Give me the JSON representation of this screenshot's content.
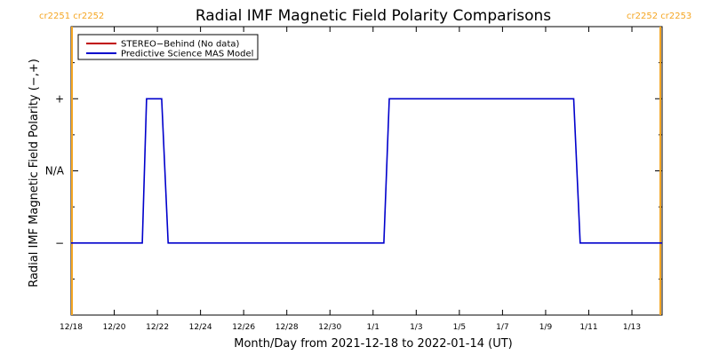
{
  "chart_data": {
    "type": "line",
    "title": "Radial IMF Magnetic Field Polarity Comparisons",
    "xlabel": "Month/Day from 2021-12-18 to 2022-01-14 (UT)",
    "ylabel": "Radial IMF Magnetic Field Polarity (−,+)",
    "x_tick_labels": [
      "12/18",
      "12/20",
      "12/22",
      "12/24",
      "12/26",
      "12/28",
      "12/30",
      "1/1",
      "1/3",
      "1/5",
      "1/7",
      "1/9",
      "1/11",
      "1/13"
    ],
    "y_tick_labels": [
      "+",
      "N/A",
      "−"
    ],
    "carrington_labels": {
      "left": [
        "cr2251",
        "cr2252"
      ],
      "right": [
        "cr2252",
        "cr2253"
      ]
    },
    "cr_color": "#f5a623",
    "legend": {
      "position": "top-left",
      "entries": [
        {
          "label": "STEREO−Behind (No data)",
          "color": "#c00000"
        },
        {
          "label": "Predictive Science MAS Model",
          "color": "#0000cc"
        }
      ]
    },
    "series": [
      {
        "name": "Predictive Science MAS Model",
        "color": "#0000cc",
        "x": [
          0,
          3.3,
          3.5,
          4.2,
          4.5,
          14.5,
          14.75,
          23.3,
          23.6,
          27.4
        ],
        "y": [
          -1,
          -1,
          1,
          1,
          -1,
          -1,
          1,
          1,
          -1,
          -1
        ]
      }
    ],
    "ylim": [
      -2,
      2
    ],
    "xlim": [
      0,
      27.4
    ]
  }
}
